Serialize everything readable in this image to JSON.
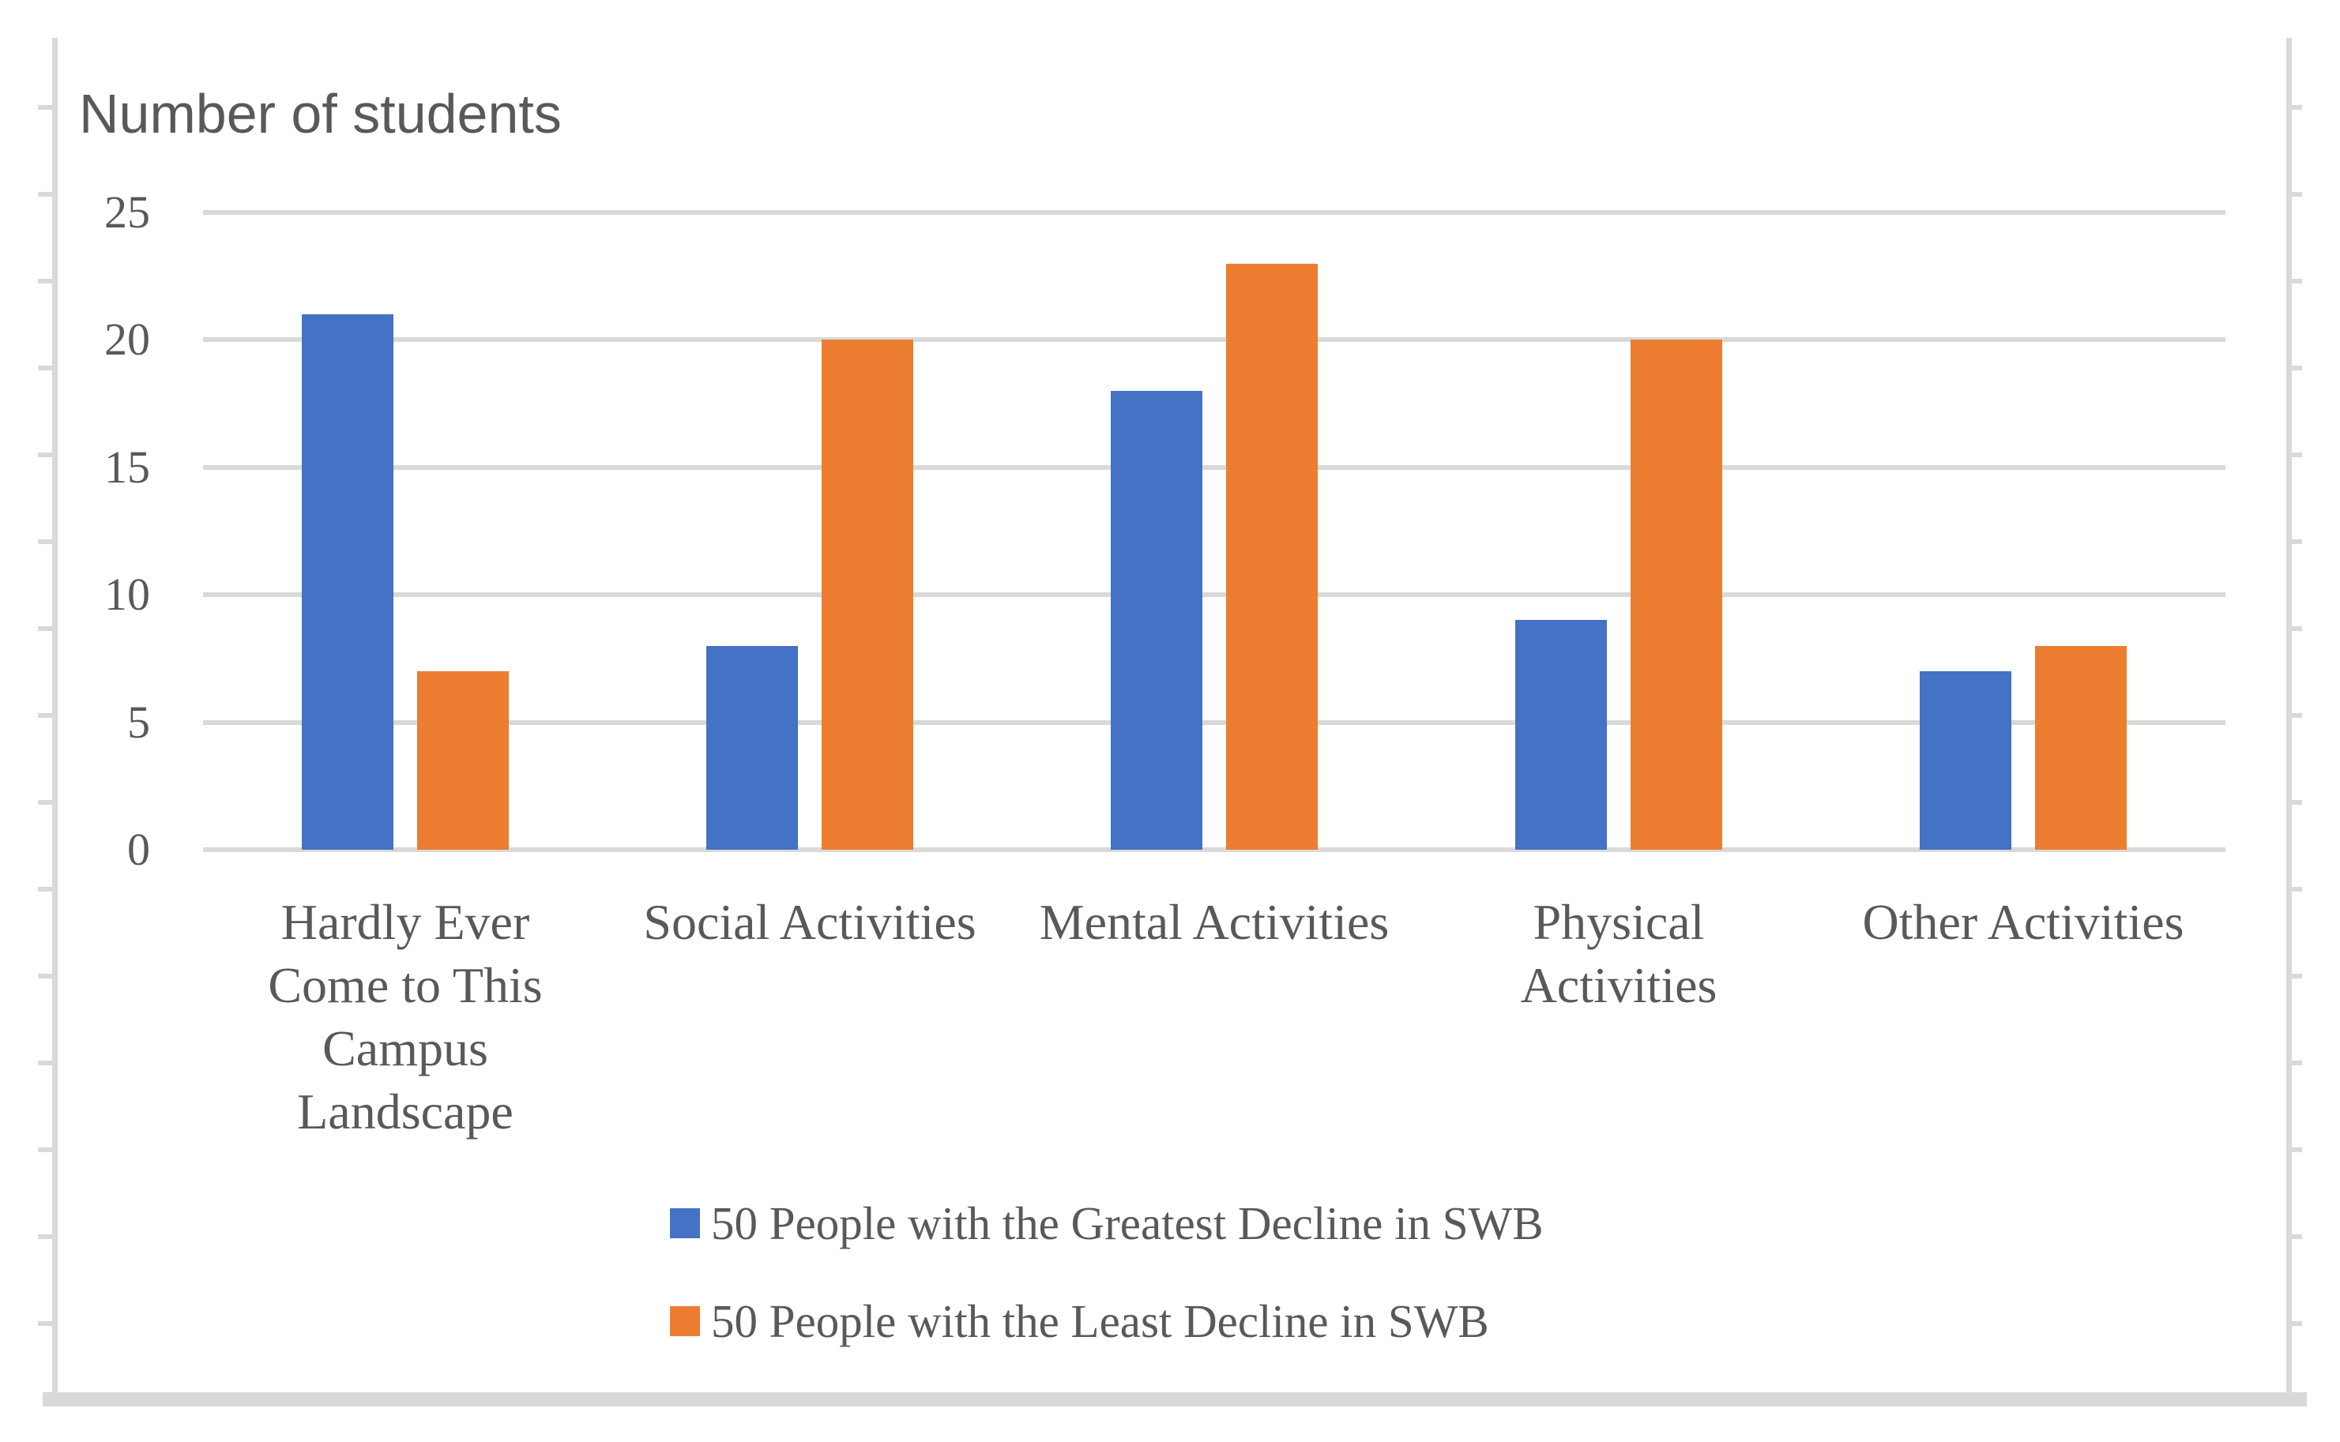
{
  "chart_data": {
    "type": "bar",
    "title": "Number of students",
    "ylabel": "Number of students",
    "xlabel": "",
    "categories": [
      "Hardly Ever\nCome to This\nCampus\nLandscape",
      "Social Activities",
      "Mental Activities",
      "Physical\nActivities",
      "Other Activities"
    ],
    "series": [
      {
        "name": "50 People with the Greatest Decline in SWB",
        "color": "#4472C4",
        "values": [
          21,
          8,
          18,
          9,
          7
        ]
      },
      {
        "name": "50 People with the Least Decline in SWB",
        "color": "#ED7D31",
        "values": [
          7,
          20,
          23,
          20,
          8
        ]
      }
    ],
    "yticks": [
      0,
      5,
      10,
      15,
      20,
      25
    ],
    "ylim": [
      0,
      25
    ],
    "grid": true,
    "legend_position": "bottom-left-stacked"
  },
  "colors": {
    "series_blue": "#4472C4",
    "series_orange": "#ED7D31",
    "axis_text": "#595959",
    "gridline": "#D9D9D9",
    "frame": "#D9D9D9"
  }
}
